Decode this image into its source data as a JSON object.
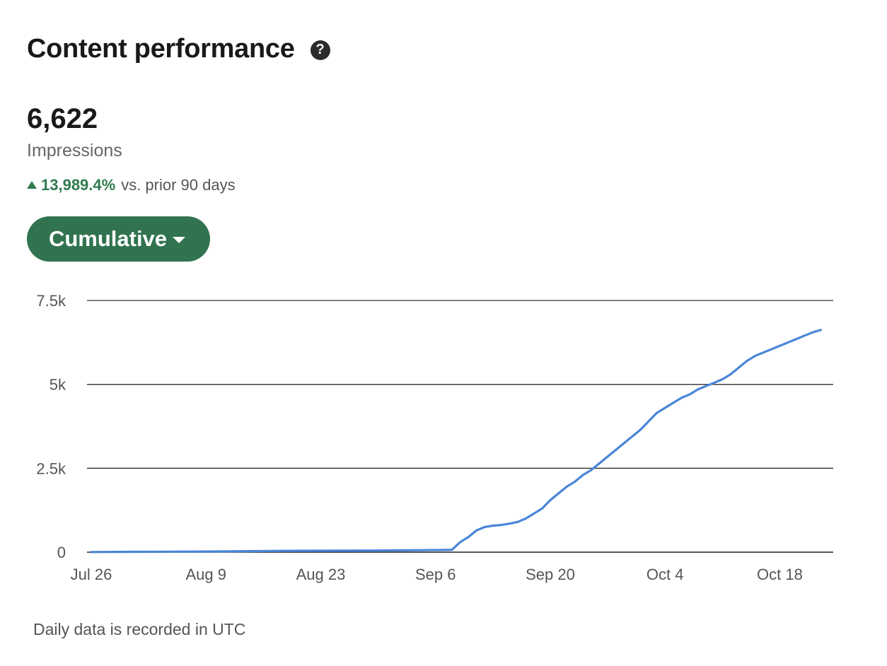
{
  "header": {
    "title": "Content performance",
    "help_icon": "question-circle-icon",
    "help_glyph": "?"
  },
  "metric": {
    "value": "6,622",
    "label": "Impressions",
    "delta_value": "13,989.4%",
    "delta_suffix": "vs. prior 90 days",
    "delta_icon": "triangle-up-icon",
    "delta_color": "#2f7a4e"
  },
  "mode_selector": {
    "label": "Cumulative",
    "icon": "caret-down-icon",
    "background": "#31734f"
  },
  "chart_data": {
    "type": "line",
    "ylim": [
      0,
      7500
    ],
    "y_ticks": [
      {
        "value": 0,
        "label": "0"
      },
      {
        "value": 2500,
        "label": "2.5k"
      },
      {
        "value": 5000,
        "label": "5k"
      },
      {
        "value": 7500,
        "label": "7.5k"
      }
    ],
    "x_ticks": [
      {
        "day": 0,
        "label": "Jul 26"
      },
      {
        "day": 14,
        "label": "Aug 9"
      },
      {
        "day": 28,
        "label": "Aug 23"
      },
      {
        "day": 42,
        "label": "Sep 6"
      },
      {
        "day": 56,
        "label": "Sep 20"
      },
      {
        "day": 70,
        "label": "Oct 4"
      },
      {
        "day": 84,
        "label": "Oct 18"
      }
    ],
    "x_range": [
      0,
      90
    ],
    "grid": true,
    "line_color": "#4a86d8",
    "series": [
      {
        "name": "",
        "x": [
          0,
          5,
          10,
          14,
          19,
          24,
          30,
          36,
          40,
          44,
          45,
          46,
          47,
          48,
          49,
          50,
          51,
          52,
          53,
          54,
          55,
          56,
          57,
          58,
          59,
          60,
          61,
          62,
          63,
          64,
          65,
          66,
          67,
          68,
          69,
          70,
          71,
          72,
          73,
          74,
          75,
          76,
          77,
          78,
          79,
          80,
          81,
          82,
          83,
          84,
          85,
          86,
          87,
          88,
          89
        ],
        "y": [
          5,
          10,
          15,
          20,
          30,
          40,
          45,
          50,
          60,
          70,
          300,
          450,
          650,
          750,
          790,
          810,
          850,
          900,
          1000,
          1150,
          1300,
          1550,
          1750,
          1950,
          2100,
          2300,
          2450,
          2650,
          2850,
          3050,
          3250,
          3450,
          3650,
          3900,
          4150,
          4300,
          4450,
          4600,
          4700,
          4850,
          4950,
          5050,
          5150,
          5300,
          5500,
          5700,
          5850,
          5950,
          6050,
          6150,
          6250,
          6350,
          6450,
          6550,
          6622
        ]
      }
    ]
  },
  "footnote": "Daily data is recorded in UTC"
}
